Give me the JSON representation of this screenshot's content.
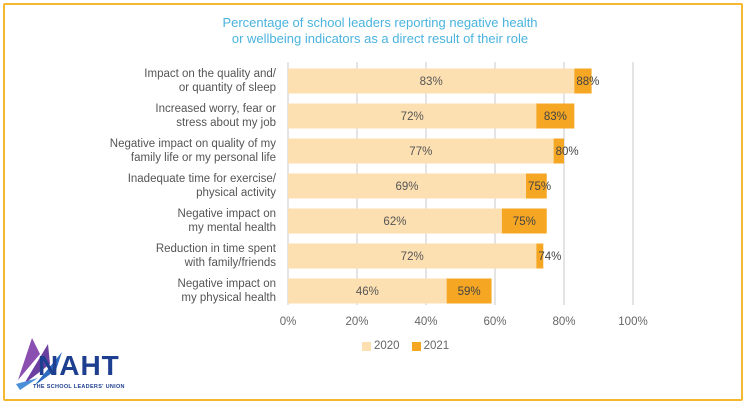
{
  "chart_data": {
    "type": "bar",
    "orientation": "horizontal",
    "title": "Percentage of school leaders reporting negative health or wellbeing indicators as a direct result of their role",
    "title_lines": [
      "Percentage of school leaders reporting negative health",
      "or wellbeing indicators as a direct result of their role"
    ],
    "categories": [
      [
        "Impact on the quality and/",
        "or quantity of sleep"
      ],
      [
        "Increased worry, fear or",
        "stress about my job"
      ],
      [
        "Negative impact on quality of my",
        "family life or my personal life"
      ],
      [
        "Inadequate time for exercise/",
        "physical activity"
      ],
      [
        "Negative impact on",
        "my mental health"
      ],
      [
        "Reduction in time spent",
        "with family/friends"
      ],
      [
        "Negative impact on",
        "my physical health"
      ]
    ],
    "series": [
      {
        "name": "2020",
        "values": [
          83,
          72,
          77,
          69,
          62,
          72,
          46
        ],
        "color": "#fde0b2",
        "labels": [
          "83%",
          "72%",
          "77%",
          "69%",
          "62%",
          "72%",
          "46%"
        ]
      },
      {
        "name": "2021",
        "values": [
          88,
          83,
          80,
          75,
          75,
          74,
          59
        ],
        "color": "#f5a623",
        "labels": [
          "88%",
          "83%",
          "80%",
          "75%",
          "75%",
          "74%",
          "59%"
        ]
      }
    ],
    "x_ticks": [
      "0%",
      "20%",
      "40%",
      "60%",
      "80%",
      "100%"
    ],
    "xlim": [
      0,
      100
    ],
    "grid": true,
    "legend_position": "bottom"
  },
  "logo": {
    "name": "NAHT",
    "tagline": "THE SCHOOL LEADERS' UNION"
  },
  "colors": {
    "frame": "#f5b82e",
    "title": "#4ab3de",
    "grid": "#bbbbbb",
    "logo_blue": "#1e3f8f",
    "logo_purple": "#8a4fb0"
  }
}
